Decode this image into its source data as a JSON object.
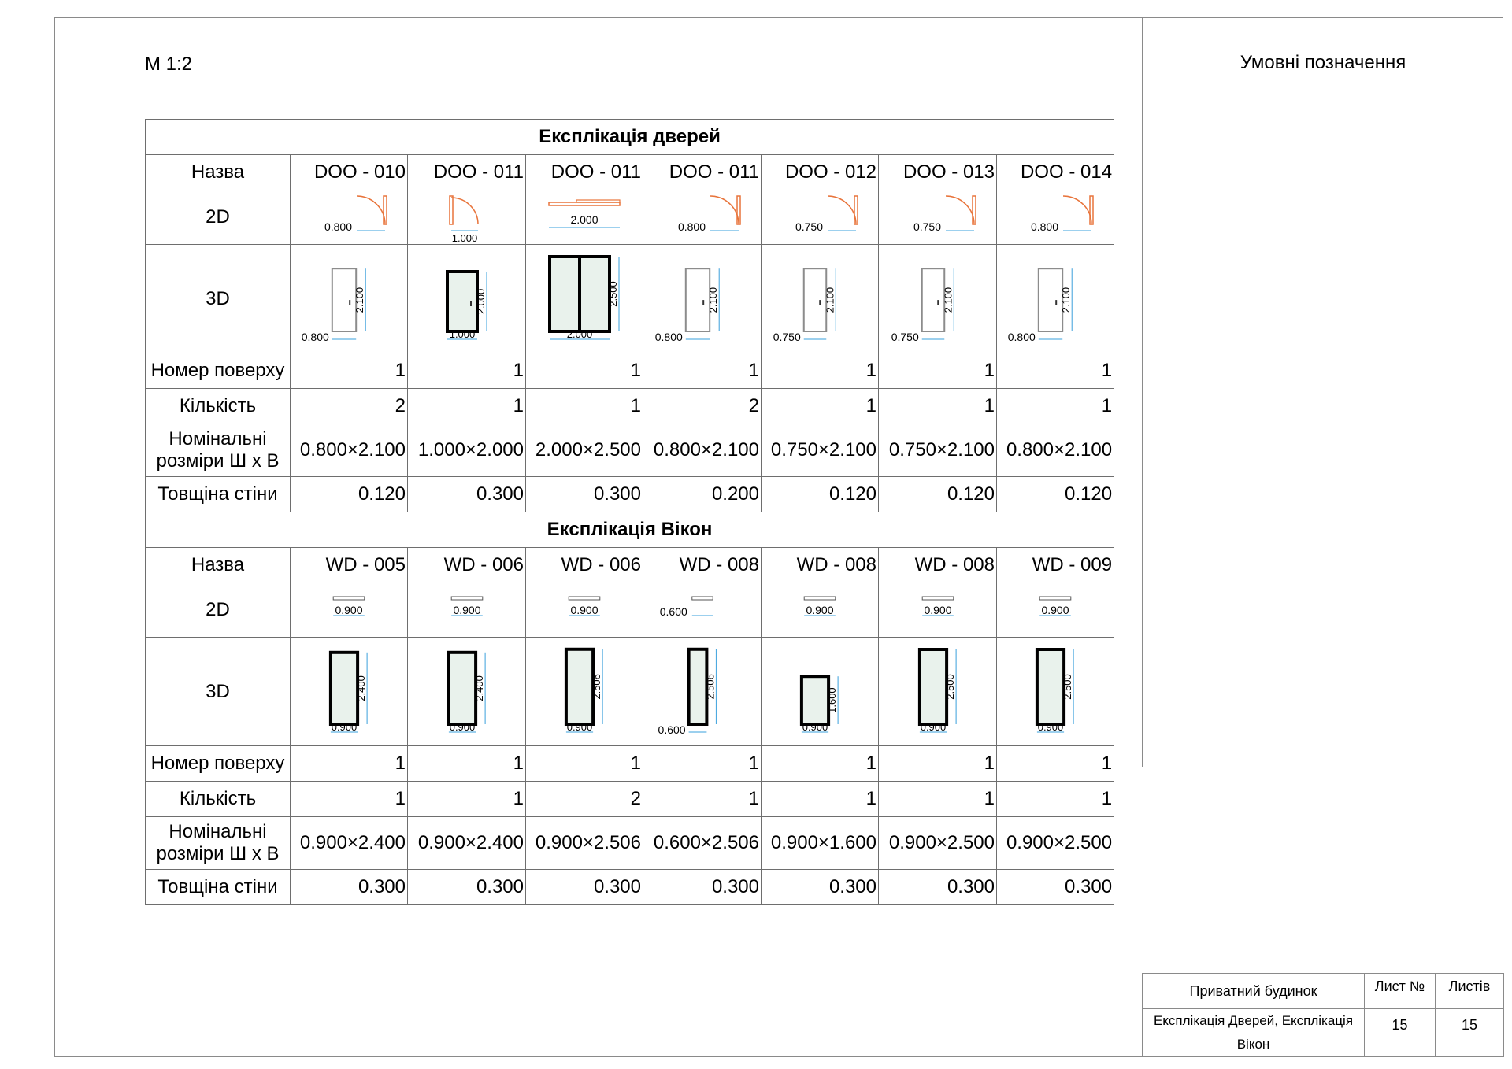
{
  "sheet": {
    "scale": "М 1:2",
    "legend_title": "Умовні позначення"
  },
  "labels": {
    "name": "Назва",
    "plan2d": "2D",
    "view3d": "3D",
    "floor": "Номер поверху",
    "count": "Кількість",
    "size_line1": "Номінальні",
    "size_line2": "розміри Ш х В",
    "wall": "Товщіна стіни"
  },
  "doors": {
    "title": "Експлікація дверей",
    "items": [
      {
        "name": "DOO - 010",
        "floor": "1",
        "count": "2",
        "size": "0.800×2.100",
        "wall": "0.120",
        "w2d": "0.800",
        "w3d": "0.800",
        "h3d": "2.100",
        "type": "swing",
        "w": 0.8,
        "h": 2.1
      },
      {
        "name": "DOO - 011",
        "floor": "1",
        "count": "1",
        "size": "1.000×2.000",
        "wall": "0.300",
        "w2d": "1.000",
        "w3d": "1.000",
        "h3d": "2.000",
        "type": "swing-heavy",
        "w": 1.0,
        "h": 2.0
      },
      {
        "name": "DOO - 011",
        "floor": "1",
        "count": "1",
        "size": "2.000×2.500",
        "wall": "0.300",
        "w2d": "2.000",
        "w3d": "2.000",
        "h3d": "2.500",
        "type": "sliding",
        "w": 2.0,
        "h": 2.5
      },
      {
        "name": "DOO - 011",
        "floor": "1",
        "count": "2",
        "size": "0.800×2.100",
        "wall": "0.200",
        "w2d": "0.800",
        "w3d": "0.800",
        "h3d": "2.100",
        "type": "swing",
        "w": 0.8,
        "h": 2.1
      },
      {
        "name": "DOO - 012",
        "floor": "1",
        "count": "1",
        "size": "0.750×2.100",
        "wall": "0.120",
        "w2d": "0.750",
        "w3d": "0.750",
        "h3d": "2.100",
        "type": "swing",
        "w": 0.75,
        "h": 2.1
      },
      {
        "name": "DOO - 013",
        "floor": "1",
        "count": "1",
        "size": "0.750×2.100",
        "wall": "0.120",
        "w2d": "0.750",
        "w3d": "0.750",
        "h3d": "2.100",
        "type": "swing",
        "w": 0.75,
        "h": 2.1
      },
      {
        "name": "DOO - 014",
        "floor": "1",
        "count": "1",
        "size": "0.800×2.100",
        "wall": "0.120",
        "w2d": "0.800",
        "w3d": "0.800",
        "h3d": "2.100",
        "type": "swing",
        "w": 0.8,
        "h": 2.1
      }
    ]
  },
  "windows": {
    "title": "Експлікація Вікон",
    "items": [
      {
        "name": "WD - 005",
        "floor": "1",
        "count": "1",
        "size": "0.900×2.400",
        "wall": "0.300",
        "w2d": "0.900",
        "w3d": "0.900",
        "h3d": "2.400",
        "w": 0.9,
        "h": 2.4
      },
      {
        "name": "WD - 006",
        "floor": "1",
        "count": "1",
        "size": "0.900×2.400",
        "wall": "0.300",
        "w2d": "0.900",
        "w3d": "0.900",
        "h3d": "2.400",
        "w": 0.9,
        "h": 2.4
      },
      {
        "name": "WD - 006",
        "floor": "1",
        "count": "2",
        "size": "0.900×2.506",
        "wall": "0.300",
        "w2d": "0.900",
        "w3d": "0.900",
        "h3d": "2.506",
        "w": 0.9,
        "h": 2.506
      },
      {
        "name": "WD - 008",
        "floor": "1",
        "count": "1",
        "size": "0.600×2.506",
        "wall": "0.300",
        "w2d": "0.600",
        "w3d": "0.600",
        "h3d": "2.506",
        "w": 0.6,
        "h": 2.506
      },
      {
        "name": "WD - 008",
        "floor": "1",
        "count": "1",
        "size": "0.900×1.600",
        "wall": "0.300",
        "w2d": "0.900",
        "w3d": "0.900",
        "h3d": "1.600",
        "w": 0.9,
        "h": 1.6
      },
      {
        "name": "WD - 008",
        "floor": "1",
        "count": "1",
        "size": "0.900×2.500",
        "wall": "0.300",
        "w2d": "0.900",
        "w3d": "0.900",
        "h3d": "2.500",
        "w": 0.9,
        "h": 2.5
      },
      {
        "name": "WD - 009",
        "floor": "1",
        "count": "1",
        "size": "0.900×2.500",
        "wall": "0.300",
        "w2d": "0.900",
        "w3d": "0.900",
        "h3d": "2.500",
        "w": 0.9,
        "h": 2.5
      }
    ]
  },
  "title_block": {
    "project": "Приватний будинок",
    "sheet_no_label": "Лист №",
    "sheets_label": "Листів",
    "drawing": "Експлікація Дверей, Експлікація Вікон",
    "sheet_no": "15",
    "sheets": "15"
  },
  "colors": {
    "door_swing": "#e8743b",
    "dimension": "#3aa0dc",
    "glass": "#e9f2ec",
    "frame": "#000000"
  }
}
